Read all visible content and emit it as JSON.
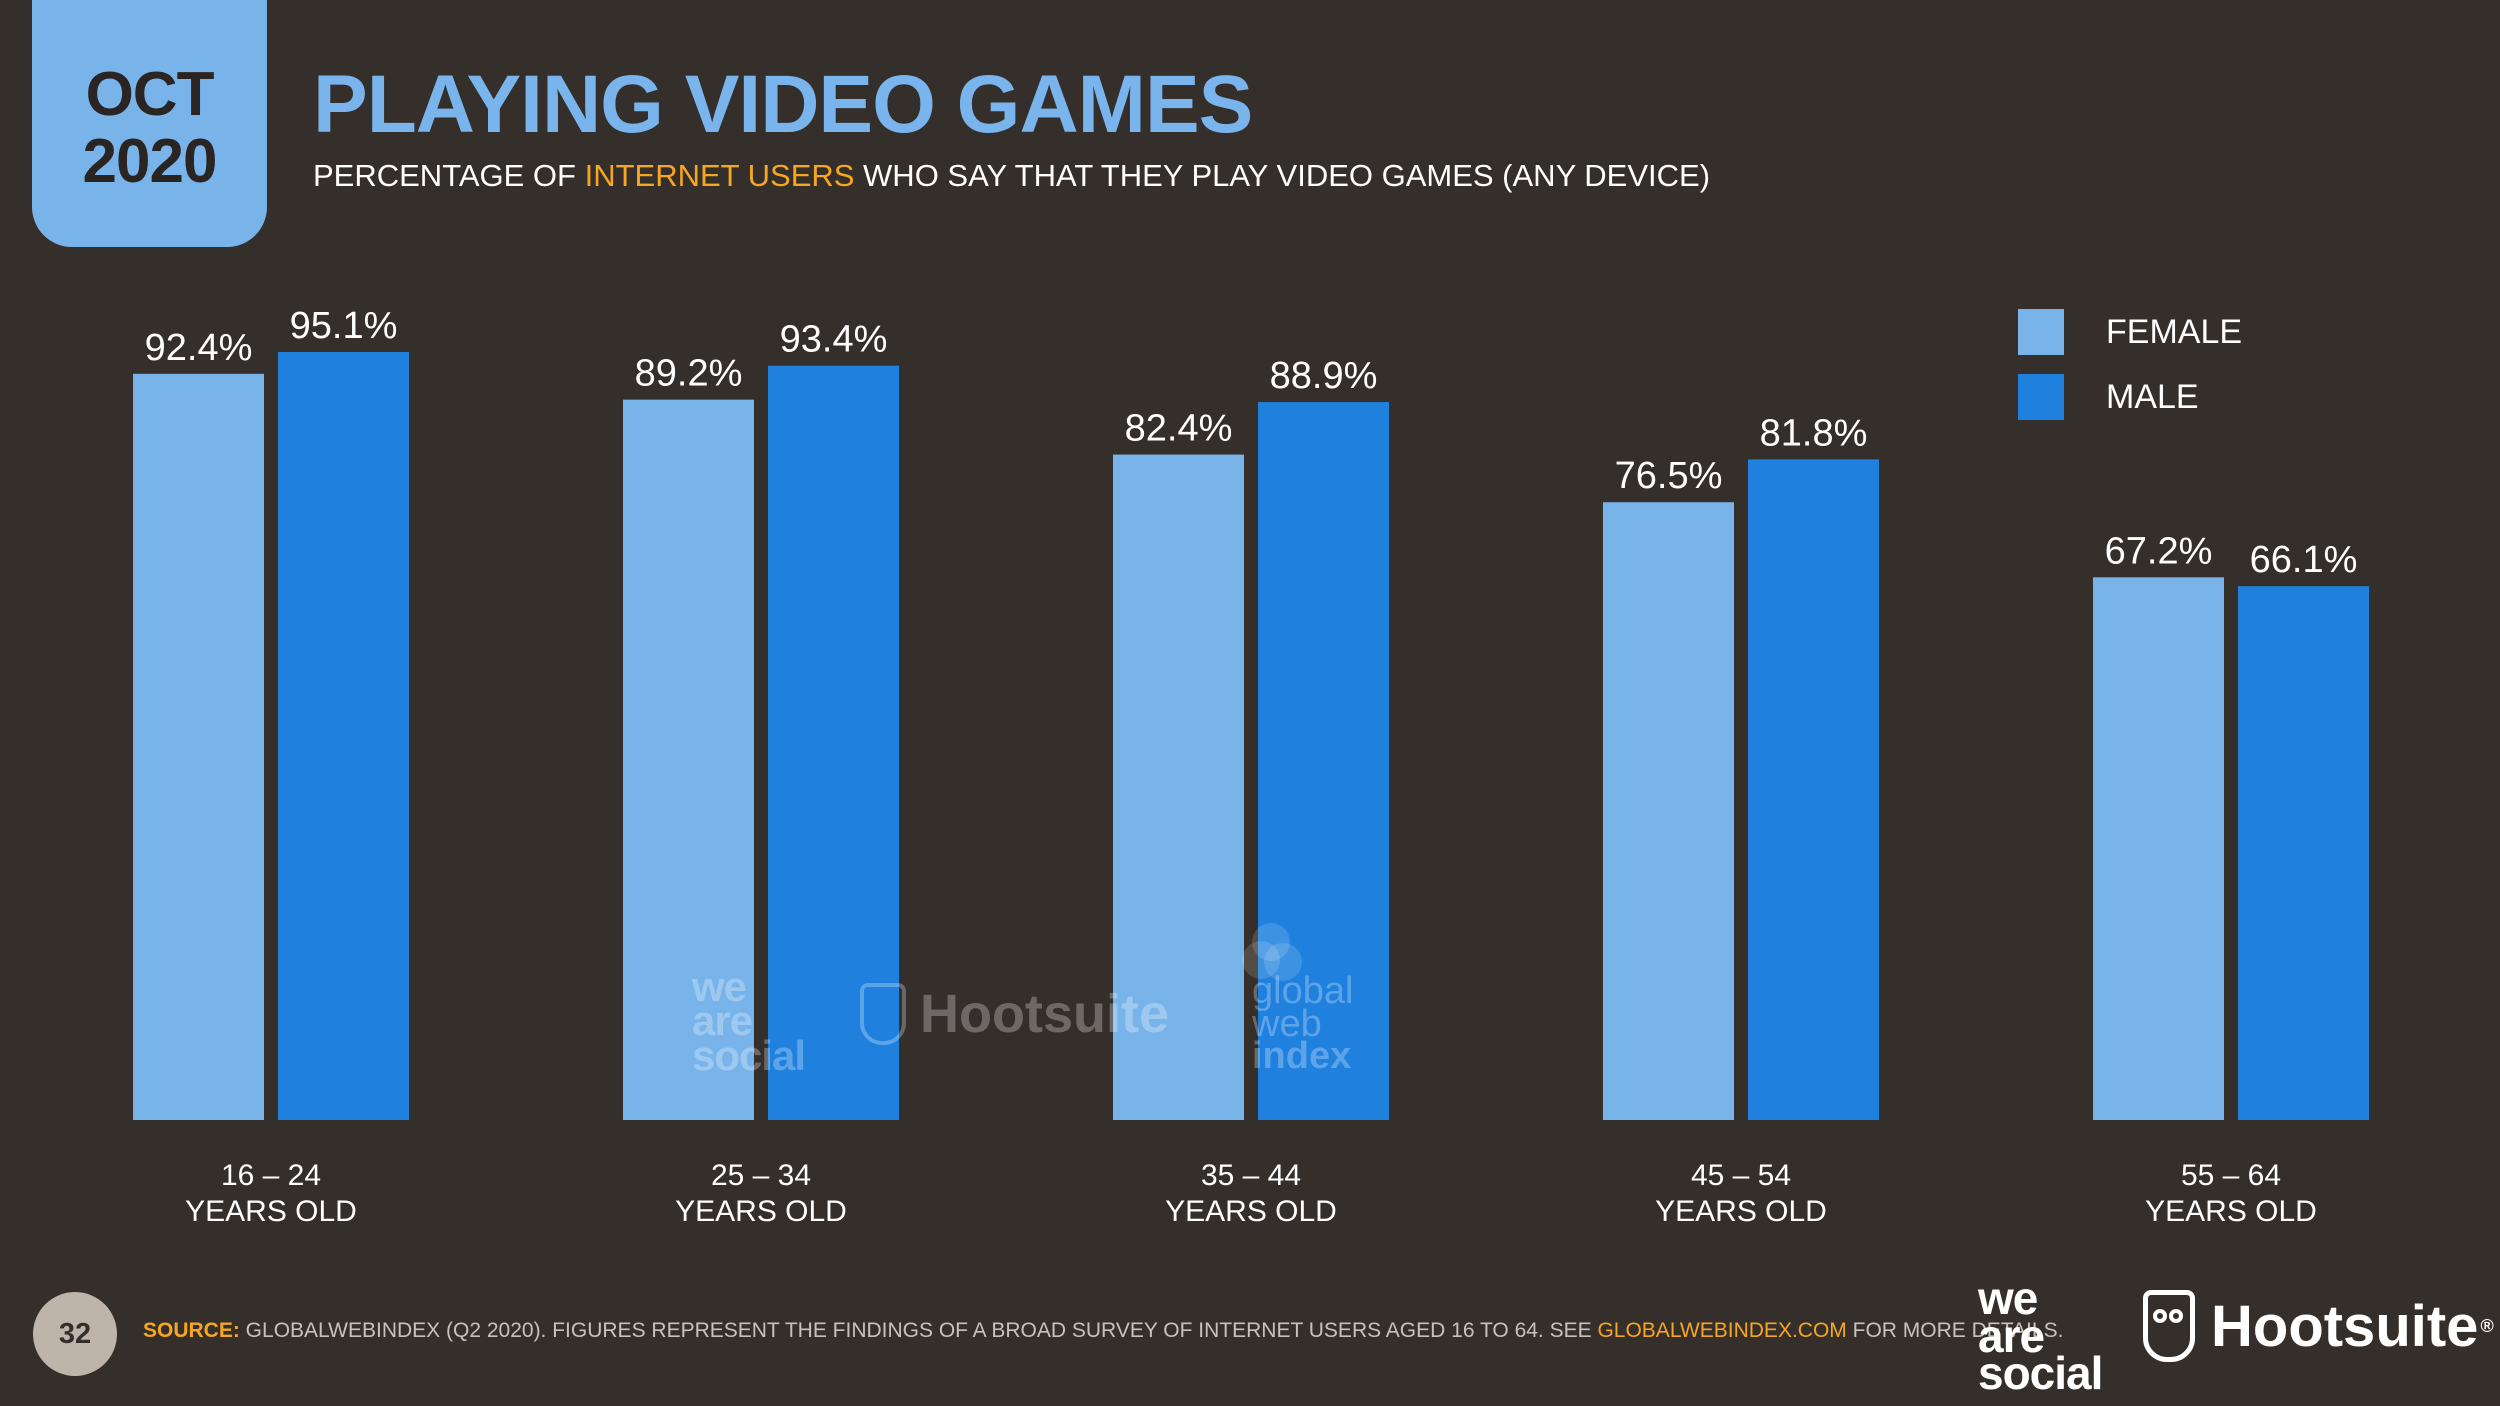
{
  "header": {
    "date_month": "OCT",
    "date_year": "2020",
    "title": "PLAYING VIDEO GAMES",
    "subtitle_pre": "PERCENTAGE OF ",
    "subtitle_highlight": "INTERNET USERS",
    "subtitle_post": " WHO SAY THAT THEY PLAY VIDEO GAMES (ANY DEVICE)"
  },
  "footer": {
    "page_number": "32",
    "source_label": "SOURCE:",
    "source_text": " GLOBALWEBINDEX (Q2 2020). FIGURES REPRESENT THE FINDINGS OF A BROAD SURVEY OF INTERNET USERS AGED 16 TO 64. SEE ",
    "source_link": "GLOBALWEBINDEX.COM",
    "source_end": " FOR MORE DETAILS.",
    "logo_was_1": "we",
    "logo_was_2": "are",
    "logo_was_3": "social",
    "logo_hootsuite": "Hootsuite",
    "logo_reg": "®"
  },
  "watermarks": {
    "was_1": "we",
    "was_2": "are",
    "was_3": "social",
    "hootsuite": "Hootsuite",
    "gwi_1": "global",
    "gwi_2": "web",
    "gwi_3": "index"
  },
  "colors": {
    "female": "#78b3ea",
    "male": "#1f80de",
    "background": "#352f2b",
    "highlight": "#f5a623"
  },
  "chart_data": {
    "type": "bar",
    "categories": [
      [
        "16 – 24",
        "YEARS OLD"
      ],
      [
        "25 – 34",
        "YEARS OLD"
      ],
      [
        "35 – 44",
        "YEARS OLD"
      ],
      [
        "45 – 54",
        "YEARS OLD"
      ],
      [
        "55 – 64",
        "YEARS OLD"
      ]
    ],
    "series": [
      {
        "name": "FEMALE",
        "values": [
          92.4,
          89.2,
          82.4,
          76.5,
          67.2
        ],
        "labels": [
          "92.4%",
          "89.2%",
          "82.4%",
          "76.5%",
          "67.2%"
        ]
      },
      {
        "name": "MALE",
        "values": [
          95.1,
          93.4,
          88.9,
          81.8,
          66.1
        ],
        "labels": [
          "95.1%",
          "93.4%",
          "88.9%",
          "81.8%",
          "66.1%"
        ]
      }
    ],
    "ylim": [
      0,
      100
    ],
    "grid": false,
    "legend": "top-right"
  }
}
